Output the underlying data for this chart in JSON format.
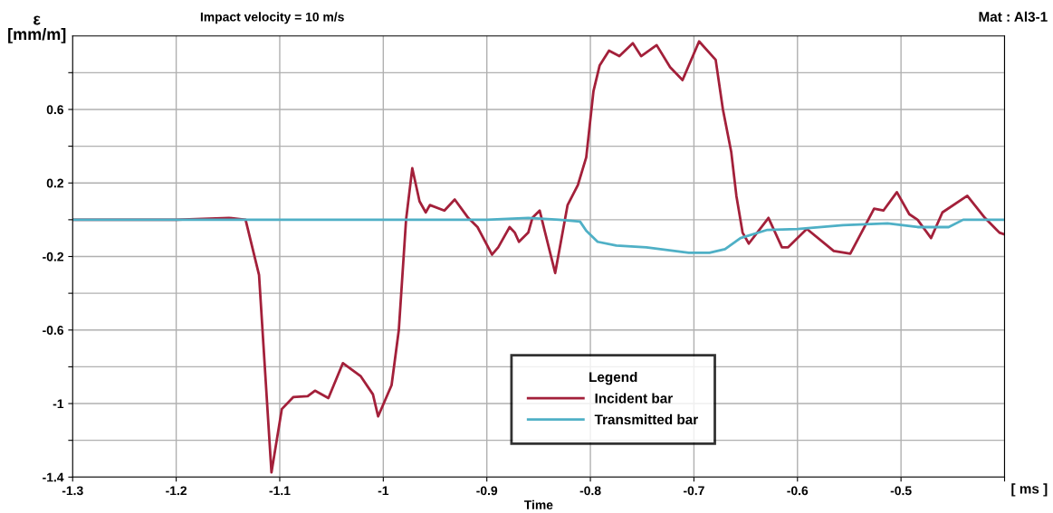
{
  "chart_data": {
    "type": "line",
    "title": "Impact velocity = 10 m/s",
    "subtitle": "Mat : Al3-1",
    "xlabel": "Time",
    "ylabel": "ε\n[mm/m]",
    "legend_title": "Legend",
    "annotations": [
      "[ ms ]"
    ],
    "xlim": [
      -1.3,
      -0.4
    ],
    "xticks": [
      -1.3,
      -1.2,
      -1.1,
      -1,
      -0.9,
      -0.8,
      -0.7,
      -0.6,
      -0.5,
      {
        "value": -0.4,
        "label": null
      }
    ],
    "ylim": [
      -1.4,
      1.0
    ],
    "yticks": [
      {
        "value": 0.8,
        "label": null
      },
      0.6,
      {
        "value": 0.4,
        "label": null
      },
      0.2,
      {
        "value": 0,
        "label": null
      },
      -0.2,
      {
        "value": -0.4,
        "label": null
      },
      -0.6,
      {
        "value": -0.8,
        "label": null
      },
      -1,
      {
        "value": -1.2,
        "label": null
      },
      -1.4
    ],
    "grid": true,
    "legend": "bottom",
    "marker": "none",
    "line_style": "solid",
    "series": [
      {
        "name": "Incident bar",
        "color": "#a3203a",
        "x": [
          -1.3,
          -1.25,
          -1.2,
          -1.149,
          -1.133,
          -1.12,
          -1.108,
          -1.098,
          -1.087,
          -1.073,
          -1.066,
          -1.053,
          -1.039,
          -1.022,
          -1.01,
          -1.005,
          -0.992,
          -0.985,
          -0.978,
          -0.972,
          -0.965,
          -0.959,
          -0.955,
          -0.941,
          -0.931,
          -0.918,
          -0.909,
          -0.895,
          -0.889,
          -0.878,
          -0.873,
          -0.869,
          -0.86,
          -0.856,
          -0.849,
          -0.834,
          -0.822,
          -0.812,
          -0.804,
          -0.797,
          -0.791,
          -0.782,
          -0.772,
          -0.759,
          -0.751,
          -0.736,
          -0.723,
          -0.711,
          -0.695,
          -0.679,
          -0.672,
          -0.664,
          -0.659,
          -0.653,
          -0.647,
          -0.628,
          -0.615,
          -0.609,
          -0.591,
          -0.565,
          -0.549,
          -0.526,
          -0.517,
          -0.504,
          -0.492,
          -0.484,
          -0.471,
          -0.46,
          -0.436,
          -0.419,
          -0.405,
          -0.4
        ],
        "values": [
          0.0,
          0.0,
          0.0,
          0.01,
          0.0,
          -0.3,
          -1.375,
          -1.03,
          -0.965,
          -0.96,
          -0.93,
          -0.97,
          -0.78,
          -0.85,
          -0.95,
          -1.07,
          -0.9,
          -0.6,
          0.0,
          0.28,
          0.1,
          0.04,
          0.08,
          0.05,
          0.11,
          0.01,
          -0.04,
          -0.19,
          -0.15,
          -0.04,
          -0.07,
          -0.12,
          -0.07,
          0.01,
          0.05,
          -0.29,
          0.08,
          0.19,
          0.34,
          0.7,
          0.84,
          0.92,
          0.89,
          0.96,
          0.89,
          0.95,
          0.83,
          0.76,
          0.97,
          0.87,
          0.6,
          0.37,
          0.13,
          -0.07,
          -0.13,
          0.01,
          -0.15,
          -0.15,
          -0.05,
          -0.17,
          -0.185,
          0.06,
          0.05,
          0.15,
          0.03,
          0.0,
          -0.1,
          0.04,
          0.13,
          0.01,
          -0.07,
          -0.08
        ]
      },
      {
        "name": "Transmitted bar",
        "color": "#4fb0c6",
        "x": [
          -1.3,
          -1.2,
          -1.1,
          -1.0,
          -0.9,
          -0.86,
          -0.83,
          -0.81,
          -0.804,
          -0.793,
          -0.775,
          -0.746,
          -0.705,
          -0.685,
          -0.67,
          -0.655,
          -0.629,
          -0.6,
          -0.556,
          -0.513,
          -0.484,
          -0.454,
          -0.44,
          -0.4
        ],
        "values": [
          0.0,
          0.0,
          0.0,
          0.0,
          0.0,
          0.01,
          0.0,
          -0.01,
          -0.06,
          -0.12,
          -0.14,
          -0.15,
          -0.18,
          -0.18,
          -0.16,
          -0.1,
          -0.055,
          -0.05,
          -0.03,
          -0.02,
          -0.04,
          -0.04,
          0.0,
          0.0
        ]
      }
    ]
  }
}
